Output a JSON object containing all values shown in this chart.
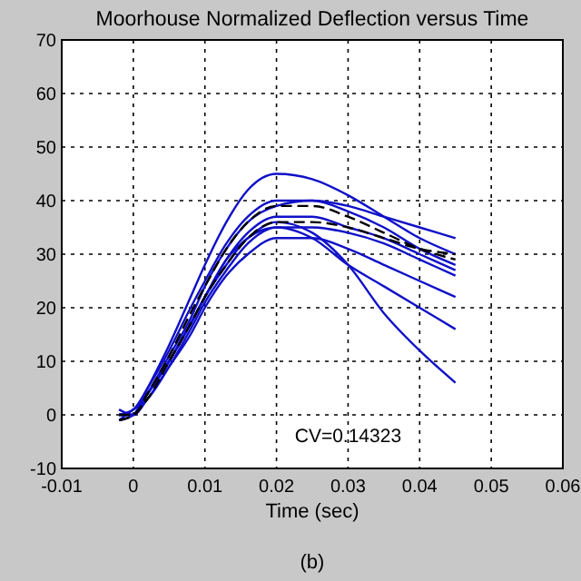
{
  "chart_data": {
    "type": "line",
    "title": "Moorhouse Normalized Deflection versus Time",
    "xlabel": "Time (sec)",
    "annotations": [
      "CV=0.14323",
      "(b)"
    ],
    "x": [
      -0.002,
      0,
      0.002,
      0.005,
      0.008,
      0.01,
      0.013,
      0.016,
      0.02,
      0.025,
      0.03,
      0.035,
      0.04,
      0.045
    ],
    "series": [
      {
        "color": "#1010c8",
        "values": [
          -1,
          0,
          5,
          13,
          22,
          28,
          36,
          42,
          45,
          44,
          41,
          37,
          33,
          30
        ]
      },
      {
        "color": "#1010c8",
        "values": [
          0,
          1,
          5,
          12,
          20,
          25,
          32,
          37,
          40,
          40,
          38,
          35,
          31,
          28
        ]
      },
      {
        "color": "#1010c8",
        "values": [
          1,
          0,
          4,
          11,
          18,
          24,
          31,
          36,
          39,
          40,
          39,
          37,
          35,
          33
        ]
      },
      {
        "color": "#1010c8",
        "values": [
          0,
          0,
          4,
          10,
          17,
          22,
          29,
          34,
          37,
          37,
          35,
          33,
          30,
          27
        ]
      },
      {
        "color": "#1010c8",
        "values": [
          -1,
          1,
          3,
          9,
          16,
          21,
          27,
          32,
          35,
          35,
          34,
          32,
          29,
          26
        ]
      },
      {
        "color": "#1010c8",
        "values": [
          0,
          0,
          3,
          9,
          15,
          20,
          26,
          30,
          33,
          33,
          31,
          28,
          25,
          22
        ]
      },
      {
        "color": "#1010c8",
        "values": [
          0,
          1,
          4,
          10,
          17,
          22,
          28,
          33,
          35,
          33,
          28,
          24,
          20,
          16
        ]
      },
      {
        "color": "#1010c8",
        "values": [
          0,
          0,
          4,
          10,
          17,
          22,
          29,
          33,
          36,
          34,
          28,
          19,
          12,
          6
        ]
      },
      {
        "color": "#000000",
        "line_style": "dashed",
        "values": [
          0,
          0,
          4,
          11,
          19,
          24,
          31,
          36,
          39,
          39,
          37,
          34,
          31,
          29
        ]
      },
      {
        "color": "#000000",
        "line_style": "dashed",
        "values": [
          -1,
          0,
          3,
          10,
          17,
          22,
          28,
          33,
          36,
          36,
          35,
          33,
          31,
          30
        ]
      }
    ],
    "xlim": [
      -0.01,
      0.06
    ],
    "xticks": [
      -0.01,
      0,
      0.01,
      0.02,
      0.03,
      0.04,
      0.05,
      0.06
    ],
    "ylim": [
      -10,
      70
    ],
    "yticks": [
      -10,
      0,
      10,
      20,
      30,
      40,
      50,
      60,
      70
    ],
    "grid": true,
    "line_style": "solid"
  }
}
